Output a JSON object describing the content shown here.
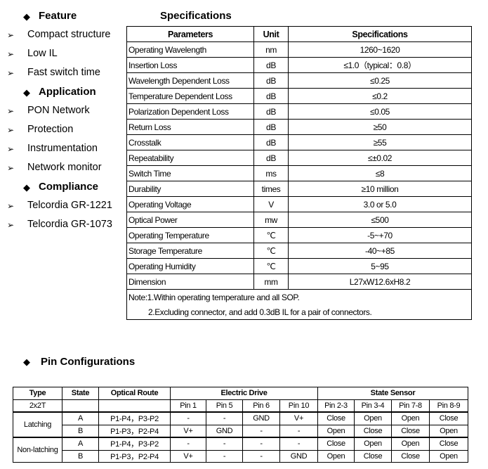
{
  "sidebar": {
    "feature": {
      "title": "Feature",
      "items": [
        "Compact structure",
        "Low IL",
        "Fast switch time"
      ]
    },
    "application": {
      "title": "Application",
      "items": [
        "PON Network",
        "Protection",
        "Instrumentation",
        "Network monitor"
      ]
    },
    "compliance": {
      "title": "Compliance",
      "items": [
        "Telcordia GR-1221",
        "Telcordia GR-1073"
      ]
    }
  },
  "spec": {
    "title": "Specifications",
    "headers": [
      "Parameters",
      "Unit",
      "Specifications"
    ],
    "rows": [
      [
        "Operating Wavelength",
        "nm",
        "1260~1620"
      ],
      [
        "Insertion Loss",
        "dB",
        "≤1.0（typical：0.8）"
      ],
      [
        "Wavelength Dependent Loss",
        "dB",
        "≤0.25"
      ],
      [
        "Temperature Dependent Loss",
        "dB",
        "≤0.2"
      ],
      [
        "Polarization Dependent Loss",
        "dB",
        "≤0.05"
      ],
      [
        "Return Loss",
        "dB",
        "≥50"
      ],
      [
        "Crosstalk",
        "dB",
        "≥55"
      ],
      [
        "Repeatability",
        "dB",
        "≤±0.02"
      ],
      [
        "Switch Time",
        "ms",
        "≤8"
      ],
      [
        "Durability",
        "times",
        "≥10 million"
      ],
      [
        "Operating Voltage",
        "V",
        "3.0 or 5.0"
      ],
      [
        "Optical Power",
        "mw",
        "≤500"
      ],
      [
        "Operating Temperature",
        "℃",
        "-5~+70"
      ],
      [
        "Storage Temperature",
        "℃",
        "-40~+85"
      ],
      [
        "Operating Humidity",
        "℃",
        "5~95"
      ],
      [
        "Dimension",
        "mm",
        "L27xW12.6xH8.2"
      ]
    ],
    "notes": [
      "Note:1.Within operating temperature and all SOP.",
      "2.Excluding connector, and add 0.3dB IL for a pair of connectors."
    ]
  },
  "pins": {
    "title": "Pin Configurations",
    "headers": [
      "Type",
      "State",
      "Optical Route",
      "Electric Drive",
      "State Sensor"
    ],
    "subheaders": [
      "2x2T",
      "",
      "",
      "Pin 1",
      "Pin 5",
      "Pin 6",
      "Pin 10",
      "Pin 2-3",
      "Pin 3-4",
      "Pin 7-8",
      "Pin 8-9"
    ],
    "groups": [
      {
        "type": "Latching",
        "rows": [
          [
            "A",
            "P1-P4，P3-P2",
            "-",
            "-",
            "GND",
            "V+",
            "Close",
            "Open",
            "Open",
            "Close"
          ],
          [
            "B",
            "P1-P3，P2-P4",
            "V+",
            "GND",
            "-",
            "-",
            "Open",
            "Close",
            "Close",
            "Open"
          ]
        ]
      },
      {
        "type": "Non-latching",
        "rows": [
          [
            "A",
            "P1-P4，P3-P2",
            "-",
            "-",
            "-",
            "-",
            "Close",
            "Open",
            "Open",
            "Close"
          ],
          [
            "B",
            "P1-P3，P2-P4",
            "V+",
            "-",
            "-",
            "GND",
            "Open",
            "Close",
            "Close",
            "Open"
          ]
        ]
      }
    ]
  },
  "icons": {
    "heading_bullet": "diamond-icon",
    "item_bullet": "arrow-right-icon"
  }
}
